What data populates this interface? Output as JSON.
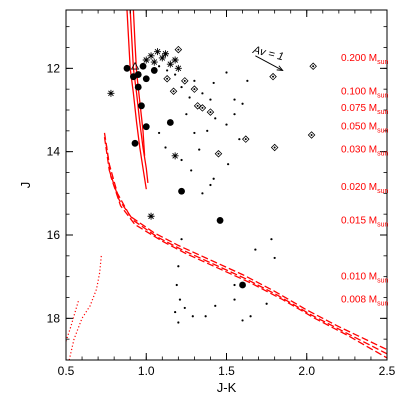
{
  "chart_data": {
    "type": "scatter",
    "title": "",
    "xlabel": "J-K",
    "ylabel": "J",
    "xlim": [
      0.5,
      2.5
    ],
    "ylim": [
      19.0,
      10.6
    ],
    "y_inverted": true,
    "x_ticks": [
      0.5,
      1.0,
      1.5,
      2.0,
      2.5
    ],
    "x_tick_labels": [
      "0.5",
      "1.0",
      "1.5",
      "2.0",
      "2.5"
    ],
    "y_ticks": [
      12,
      14,
      16,
      18
    ],
    "y_tick_labels": [
      "12",
      "14",
      "16",
      "18"
    ],
    "reddening_vector": {
      "label": "Av = 1",
      "from": [
        1.68,
        11.7
      ],
      "to": [
        1.85,
        12.05
      ]
    },
    "mass_labels": [
      {
        "text": "0.200 M",
        "sub": "sun",
        "J": 11.75
      },
      {
        "text": "0.100 M",
        "sub": "sun",
        "J": 12.55
      },
      {
        "text": "0.075 M",
        "sub": "sun",
        "J": 12.95
      },
      {
        "text": "0.050 M",
        "sub": "sun",
        "J": 13.4
      },
      {
        "text": "0.030 M",
        "sub": "sun",
        "J": 13.95
      },
      {
        "text": "0.020 M",
        "sub": "sun",
        "J": 14.85
      },
      {
        "text": "0.015 M",
        "sub": "sun",
        "J": 15.65
      },
      {
        "text": "0.010 M",
        "sub": "sun",
        "J": 17.0
      },
      {
        "text": "0.008 M",
        "sub": "sun",
        "J": 17.55
      }
    ],
    "series": [
      {
        "marker": "large-dot",
        "points": [
          [
            0.88,
            12.0
          ],
          [
            0.92,
            12.2
          ],
          [
            0.95,
            12.15
          ],
          [
            0.95,
            12.45
          ],
          [
            0.97,
            12.9
          ],
          [
            1.0,
            13.4
          ],
          [
            1.15,
            13.3
          ],
          [
            1.22,
            14.95
          ],
          [
            1.46,
            15.65
          ],
          [
            1.6,
            17.2
          ],
          [
            0.93,
            13.8
          ],
          [
            0.98,
            11.95
          ],
          [
            1.0,
            12.25
          ],
          [
            1.05,
            12.05
          ]
        ]
      },
      {
        "marker": "asterisk",
        "points": [
          [
            0.78,
            12.6
          ],
          [
            1.0,
            11.8
          ],
          [
            1.03,
            11.7
          ],
          [
            1.05,
            11.85
          ],
          [
            1.07,
            11.6
          ],
          [
            1.1,
            11.75
          ],
          [
            1.12,
            11.65
          ],
          [
            1.15,
            11.9
          ],
          [
            1.18,
            11.8
          ],
          [
            1.2,
            12.0
          ],
          [
            1.18,
            14.1
          ],
          [
            1.03,
            15.55
          ]
        ]
      },
      {
        "marker": "diamond-dot",
        "points": [
          [
            1.2,
            11.55
          ],
          [
            1.24,
            12.3
          ],
          [
            1.3,
            12.5
          ],
          [
            1.32,
            12.9
          ],
          [
            1.35,
            12.95
          ],
          [
            1.4,
            13.05
          ],
          [
            1.45,
            14.05
          ],
          [
            1.62,
            13.7
          ],
          [
            1.79,
            12.2
          ],
          [
            1.8,
            13.9
          ],
          [
            2.04,
            11.95
          ],
          [
            2.03,
            13.6
          ],
          [
            1.13,
            12.25
          ],
          [
            1.17,
            12.55
          ]
        ]
      },
      {
        "marker": "triangle",
        "points": [
          [
            0.93,
            11.95
          ]
        ]
      },
      {
        "marker": "small-dot",
        "points": [
          [
            1.08,
            11.95
          ],
          [
            1.13,
            12.05
          ],
          [
            1.18,
            12.15
          ],
          [
            1.22,
            12.45
          ],
          [
            1.27,
            12.7
          ],
          [
            1.3,
            12.3
          ],
          [
            1.35,
            12.6
          ],
          [
            1.4,
            12.75
          ],
          [
            1.42,
            12.35
          ],
          [
            1.5,
            12.1
          ],
          [
            1.55,
            12.75
          ],
          [
            1.6,
            12.85
          ],
          [
            1.63,
            12.3
          ],
          [
            1.25,
            13.1
          ],
          [
            1.3,
            13.55
          ],
          [
            1.33,
            13.95
          ],
          [
            1.38,
            13.5
          ],
          [
            1.43,
            13.2
          ],
          [
            1.5,
            13.35
          ],
          [
            1.55,
            13.1
          ],
          [
            1.58,
            13.7
          ],
          [
            1.08,
            13.55
          ],
          [
            1.12,
            13.9
          ],
          [
            1.22,
            14.2
          ],
          [
            1.28,
            14.45
          ],
          [
            1.42,
            14.65
          ],
          [
            1.51,
            14.3
          ],
          [
            1.35,
            15.0
          ],
          [
            1.4,
            14.8
          ],
          [
            1.68,
            16.35
          ],
          [
            1.78,
            16.1
          ],
          [
            1.8,
            16.55
          ],
          [
            1.22,
            16.1
          ],
          [
            1.19,
            17.2
          ],
          [
            1.21,
            17.55
          ],
          [
            1.18,
            17.85
          ],
          [
            1.2,
            18.1
          ],
          [
            1.24,
            17.75
          ],
          [
            1.29,
            17.95
          ],
          [
            1.37,
            17.95
          ],
          [
            1.43,
            17.7
          ],
          [
            1.55,
            17.55
          ],
          [
            1.6,
            18.05
          ],
          [
            1.65,
            17.95
          ],
          [
            1.75,
            17.65
          ],
          [
            1.2,
            16.75
          ],
          [
            1.55,
            17.2
          ]
        ]
      }
    ],
    "isochrones": [
      {
        "style": "solid",
        "color": "#ff0000",
        "points": [
          [
            0.88,
            10.6
          ],
          [
            0.89,
            11.3
          ],
          [
            0.9,
            12.0
          ],
          [
            0.92,
            12.6
          ],
          [
            0.94,
            13.3
          ],
          [
            0.96,
            13.9
          ],
          [
            0.98,
            14.4
          ],
          [
            1.0,
            14.9
          ]
        ]
      },
      {
        "style": "solid",
        "color": "#ff0000",
        "points": [
          [
            0.9,
            10.6
          ],
          [
            0.91,
            11.3
          ],
          [
            0.92,
            12.0
          ],
          [
            0.94,
            12.6
          ],
          [
            0.96,
            13.3
          ],
          [
            0.98,
            13.9
          ],
          [
            1.0,
            14.4
          ],
          [
            1.01,
            14.75
          ]
        ]
      },
      {
        "style": "solid",
        "color": "#ff0000",
        "points": [
          [
            0.92,
            10.6
          ],
          [
            0.93,
            11.4
          ],
          [
            0.94,
            12.1
          ],
          [
            0.96,
            12.8
          ],
          [
            0.98,
            13.5
          ],
          [
            0.99,
            14.1
          ]
        ]
      },
      {
        "style": "dashed",
        "color": "#ff0000",
        "points": [
          [
            0.74,
            13.55
          ],
          [
            0.77,
            14.3
          ],
          [
            0.82,
            15.0
          ],
          [
            0.9,
            15.55
          ],
          [
            1.05,
            15.95
          ],
          [
            1.2,
            16.25
          ],
          [
            1.4,
            16.6
          ],
          [
            1.6,
            16.95
          ],
          [
            1.8,
            17.35
          ],
          [
            2.0,
            17.8
          ],
          [
            2.2,
            18.2
          ],
          [
            2.5,
            18.75
          ]
        ]
      },
      {
        "style": "dashed",
        "color": "#ff0000",
        "points": [
          [
            0.74,
            13.65
          ],
          [
            0.77,
            14.45
          ],
          [
            0.83,
            15.15
          ],
          [
            0.92,
            15.65
          ],
          [
            1.07,
            16.05
          ],
          [
            1.22,
            16.35
          ],
          [
            1.42,
            16.7
          ],
          [
            1.62,
            17.05
          ],
          [
            1.82,
            17.45
          ],
          [
            2.02,
            17.9
          ],
          [
            2.22,
            18.3
          ],
          [
            2.5,
            18.85
          ]
        ]
      },
      {
        "style": "dashed",
        "color": "#ff0000",
        "points": [
          [
            0.75,
            13.8
          ],
          [
            0.78,
            14.6
          ],
          [
            0.84,
            15.3
          ],
          [
            0.93,
            15.75
          ],
          [
            1.1,
            16.15
          ],
          [
            1.25,
            16.45
          ],
          [
            1.45,
            16.8
          ],
          [
            1.65,
            17.15
          ],
          [
            1.85,
            17.55
          ],
          [
            2.05,
            18.0
          ],
          [
            2.25,
            18.4
          ],
          [
            2.5,
            18.95
          ]
        ]
      },
      {
        "style": "dotted",
        "color": "#ff0000",
        "points": [
          [
            0.52,
            19.0
          ],
          [
            0.55,
            18.5
          ],
          [
            0.6,
            18.0
          ],
          [
            0.65,
            17.7
          ],
          [
            0.69,
            17.3
          ],
          [
            0.71,
            16.9
          ],
          [
            0.72,
            16.5
          ]
        ]
      },
      {
        "style": "dotted",
        "color": "#ff0000",
        "points": [
          [
            0.5,
            18.55
          ],
          [
            0.53,
            18.2
          ],
          [
            0.58,
            17.55
          ]
        ]
      }
    ]
  }
}
